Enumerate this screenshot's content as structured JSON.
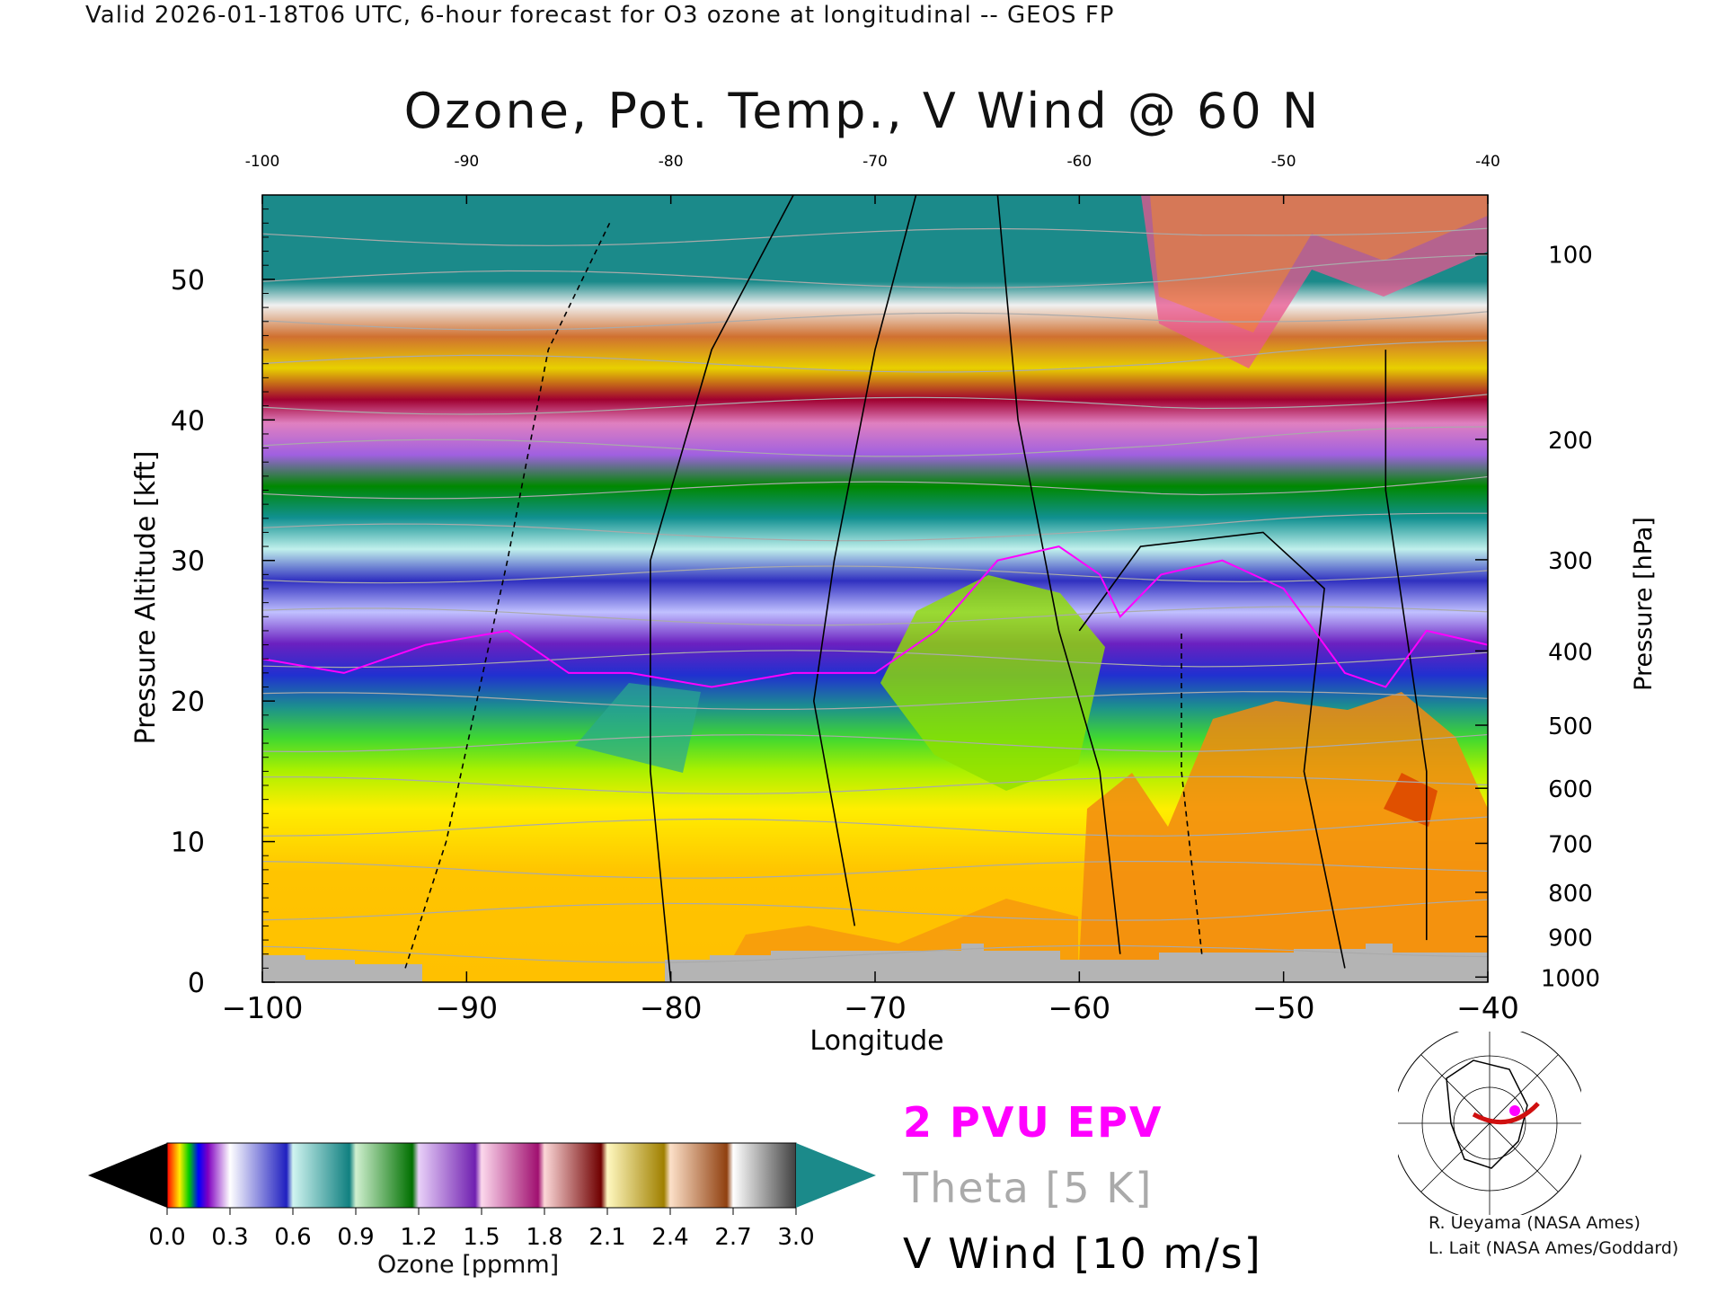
{
  "header": "Valid 2026-01-18T06 UTC, 6-hour forecast for O3 ozone at longitudinal -- GEOS FP",
  "chart_data": {
    "type": "heatmap",
    "title": "Ozone, Pot. Temp., V Wind @ 60 N",
    "xlabel": "Longitude",
    "ylabel_left": "Pressure Altitude [kft]",
    "ylabel_right": "Pressure [hPa]",
    "xlim": [
      -100,
      -40
    ],
    "ylim_kft": [
      0,
      56
    ],
    "x_ticks": [
      "−100",
      "−90",
      "−80",
      "−70",
      "−60",
      "−50",
      "−40"
    ],
    "x_tick_values": [
      -100,
      -90,
      -80,
      -70,
      -60,
      -50,
      -40
    ],
    "x_top_ticks": [
      "-100",
      "-90",
      "-80",
      "-70",
      "-60",
      "-50",
      "-40"
    ],
    "y_ticks_kft": [
      "0",
      "10",
      "20",
      "30",
      "40",
      "50"
    ],
    "y_tick_values_kft": [
      0,
      10,
      20,
      30,
      40,
      50
    ],
    "pressure_ticks": [
      "100",
      "200",
      "300",
      "400",
      "500",
      "600",
      "700",
      "800",
      "900",
      "1000"
    ],
    "pressure_tick_values_hpa": [
      100,
      200,
      300,
      400,
      500,
      600,
      700,
      800,
      900,
      1000
    ],
    "tropopause_kft": {
      "x": [
        -100,
        -96,
        -92,
        -88,
        -85,
        -82,
        -78,
        -74,
        -70,
        -67,
        -64,
        -61,
        -59,
        -58,
        -56,
        -53,
        -50,
        -47,
        -45,
        -43,
        -40
      ],
      "y": [
        23,
        22,
        24,
        25,
        22,
        22,
        21,
        22,
        22,
        25,
        30,
        31,
        29,
        26,
        29,
        30,
        28,
        22,
        21,
        25,
        24
      ]
    },
    "colorbar": {
      "label": "Ozone [ppmm]",
      "ticks": [
        "0.0",
        "0.3",
        "0.6",
        "0.9",
        "1.2",
        "1.5",
        "1.8",
        "2.1",
        "2.4",
        "2.7",
        "3.0"
      ],
      "tick_values": [
        0.0,
        0.3,
        0.6,
        0.9,
        1.2,
        1.5,
        1.8,
        2.1,
        2.4,
        2.7,
        3.0
      ],
      "under_color": "#000000",
      "over_color": "#1b8a8a"
    },
    "legend": [
      "2 PVU EPV",
      "Theta [5 K]",
      "V Wind [10 m/s]"
    ]
  },
  "colors": {
    "epv": "#ff00ff",
    "theta": "#aaaaaa",
    "wind": "#000000",
    "terrain": "#b4b4b4"
  },
  "credits": [
    "R. Ueyama (NASA Ames)",
    "L. Lait (NASA Ames/Goddard)"
  ]
}
